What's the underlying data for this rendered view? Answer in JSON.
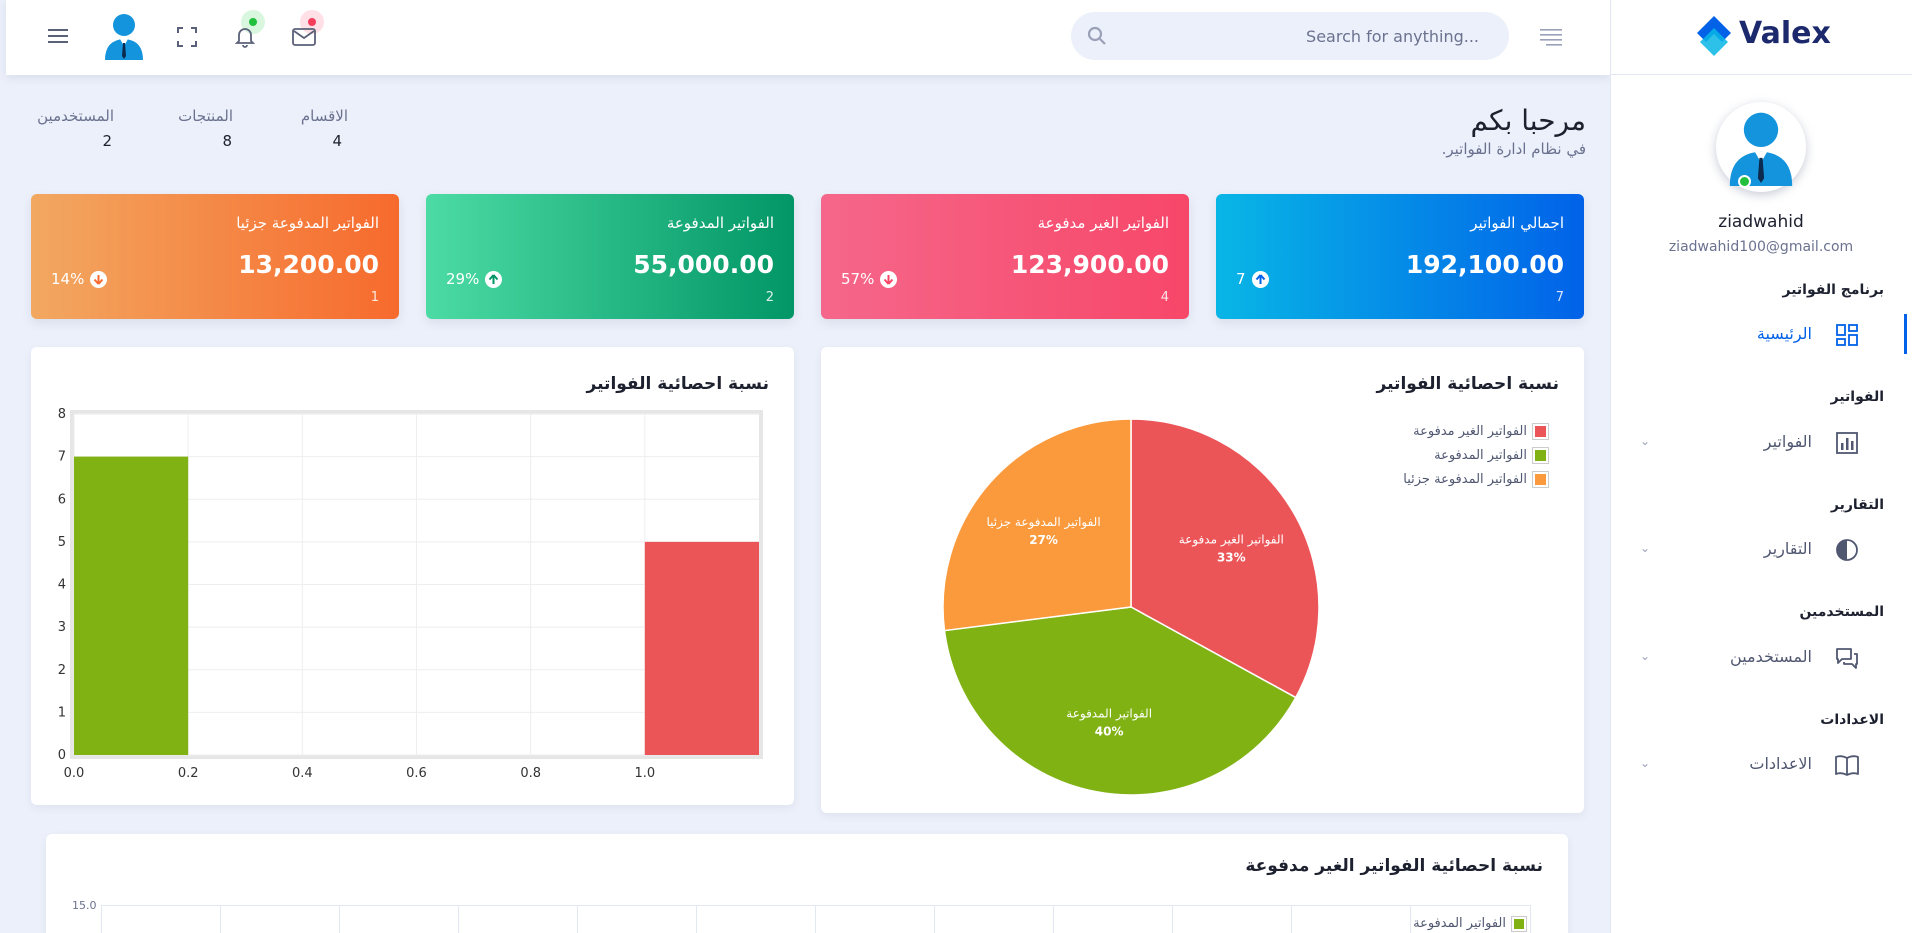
{
  "header": {
    "search_placeholder": "Search for anything..."
  },
  "sidebar": {
    "brand": "Valex",
    "user_name": "ziadwahid",
    "user_email": "ziadwahid100@gmail.com",
    "sections": [
      {
        "title": "برنامج الفواتير",
        "item": "الرئيسية"
      },
      {
        "title": "الفواتير",
        "item": "الفواتير"
      },
      {
        "title": "التقارير",
        "item": "التقارير"
      },
      {
        "title": "المستخدمين",
        "item": "المستخدمين"
      },
      {
        "title": "الاعدادات",
        "item": "الاعدادات"
      }
    ]
  },
  "welcome": {
    "title": "مرحبا بكم",
    "subtitle": "في نظام ادارة الفواتير."
  },
  "stats": [
    {
      "label": "الاقسام",
      "value": "4"
    },
    {
      "label": "المنتجات",
      "value": "8"
    },
    {
      "label": "المستخدمين",
      "value": "2"
    }
  ],
  "cards": [
    {
      "title": "اجمالي الفواتير",
      "amount": "192,100.00",
      "count": "7",
      "pct": "7",
      "dir": "up",
      "grad": [
        "#0162e8",
        "#08b6e6"
      ]
    },
    {
      "title": "الفواتير الغير مدفوعة",
      "amount": "123,900.00",
      "count": "4",
      "pct": "57%",
      "dir": "down",
      "grad": [
        "#f74769",
        "#f5678a"
      ]
    },
    {
      "title": "الفواتير المدفوعة",
      "amount": "55,000.00",
      "count": "2",
      "pct": "29%",
      "dir": "up",
      "grad": [
        "#029666",
        "#4cdba4"
      ]
    },
    {
      "title": "الفواتير المدفوعة جزئيا",
      "amount": "13,200.00",
      "count": "1",
      "pct": "14%",
      "dir": "down",
      "grad": [
        "#f76a2d",
        "#f2a861"
      ]
    }
  ],
  "pie_panel": {
    "title": "نسبة احصائية الفواتير"
  },
  "bar_panel": {
    "title": "نسبة احصائية الفواتير"
  },
  "bottom_panel": {
    "title": "نسبة احصائية الفواتير الغير مدفوعة",
    "ytop": "15.0",
    "legend": "الفواتير المدفوعة",
    "legend_color": "#80b214"
  },
  "chart_data": [
    {
      "type": "pie",
      "title": "نسبة احصائية الفواتير",
      "labels": [
        "الفواتير الغير مدفوعة",
        "الفواتير المدفوعة",
        "الفواتير المدفوعة جزئيا"
      ],
      "values": [
        33,
        40,
        27
      ],
      "value_labels": [
        "33%",
        "40%",
        "27%"
      ],
      "colors": [
        "#ec5558",
        "#80b214",
        "#fb9a3c"
      ],
      "legend_position": "top-right"
    },
    {
      "type": "bar",
      "title": "نسبة احصائية الفواتير",
      "bars": [
        {
          "x0": 0.0,
          "x1": 0.2,
          "value": 7,
          "color": "#80b214"
        },
        {
          "x0": 1.0,
          "x1": 1.2,
          "value": 5,
          "color": "#ec5558"
        }
      ],
      "xticks": [
        "0.0",
        "0.2",
        "0.4",
        "0.6",
        "0.8",
        "1.0"
      ],
      "xticks_values": [
        0,
        0.2,
        0.4,
        0.6,
        0.8,
        1.0
      ],
      "yticks": [
        0,
        1,
        2,
        3,
        4,
        5,
        6,
        7,
        8
      ],
      "xlim": [
        0,
        1.2
      ],
      "ylim": [
        0,
        8
      ],
      "grid": true
    }
  ]
}
